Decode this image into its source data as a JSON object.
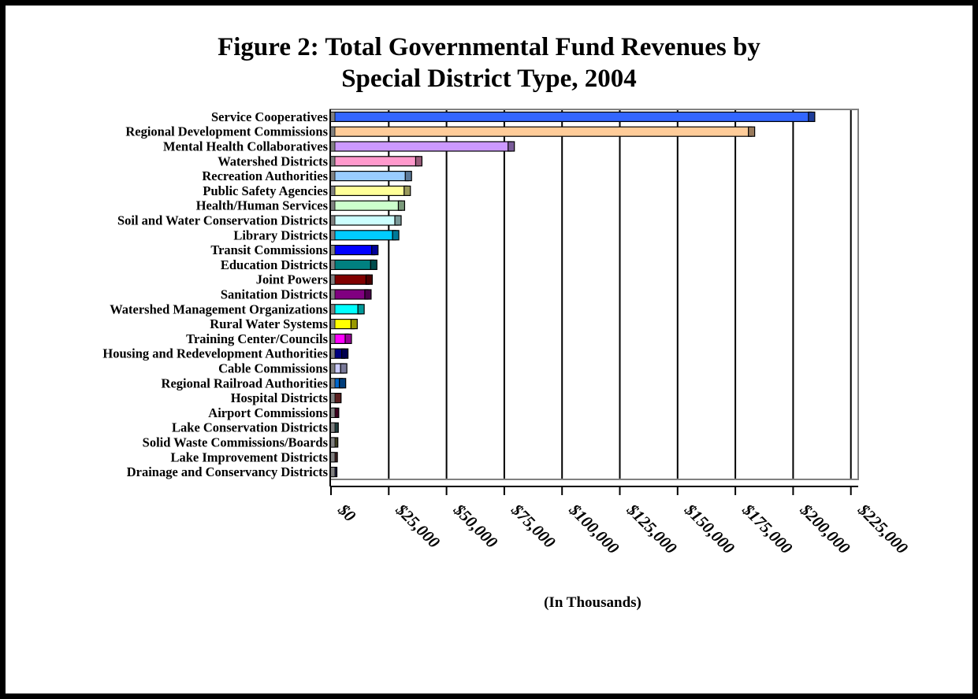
{
  "chart_data": {
    "type": "bar",
    "orientation": "horizontal",
    "title_lines": [
      "Figure 2:  Total Governmental Fund Revenues by",
      "Special District Type, 2004"
    ],
    "xlabel": "(In Thousands)",
    "ylabel": "",
    "xlim": [
      0,
      225000
    ],
    "xticks": [
      0,
      25000,
      50000,
      75000,
      100000,
      125000,
      150000,
      175000,
      200000,
      225000
    ],
    "xtick_labels": [
      "$0",
      "$25,000",
      "$50,000",
      "$75,000",
      "$100,000",
      "$125,000",
      "$150,000",
      "$175,000",
      "$200,000",
      "$225,000"
    ],
    "grid": "vertical",
    "legend": "none",
    "categories": [
      "Service Cooperatives",
      "Regional Development Commissions",
      "Mental Health Collaboratives",
      "Watershed Districts",
      "Recreation Authorities",
      "Public Safety Agencies",
      "Health/Human Services",
      "Soil and Water Conservation Districts",
      "Library Districts",
      "Transit Commissions",
      "Education Districts",
      "Joint Powers",
      "Sanitation Districts",
      "Watershed Management Organizations",
      "Rural Water Systems",
      "Training Center/Councils",
      "Housing and Redevelopment Authorities",
      "Cable Commissions",
      "Regional Railroad Authorities",
      "Hospital Districts",
      "Airport Commissions",
      "Lake Conservation Districts",
      "Solid Waste Commissions/Boards",
      "Lake Improvement Districts",
      "Drainage and Conservancy Districts"
    ],
    "values": [
      208000,
      182000,
      78000,
      38000,
      33500,
      33000,
      30500,
      29000,
      28000,
      19000,
      18500,
      16500,
      16000,
      13000,
      10000,
      7500,
      6000,
      5500,
      5000,
      3000,
      2000,
      1800,
      1600,
      1400,
      1200
    ],
    "colors": [
      "#3366ff",
      "#ffcc99",
      "#cc99ff",
      "#ff99cc",
      "#99ccff",
      "#ffff99",
      "#ccffcc",
      "#ccffff",
      "#00ccff",
      "#0000ff",
      "#008080",
      "#800000",
      "#800080",
      "#00ffff",
      "#ffff00",
      "#ff00ff",
      "#000080",
      "#ccccff",
      "#0066cc",
      "#993333",
      "#660033",
      "#336666",
      "#666633",
      "#663333",
      "#333366"
    ]
  }
}
